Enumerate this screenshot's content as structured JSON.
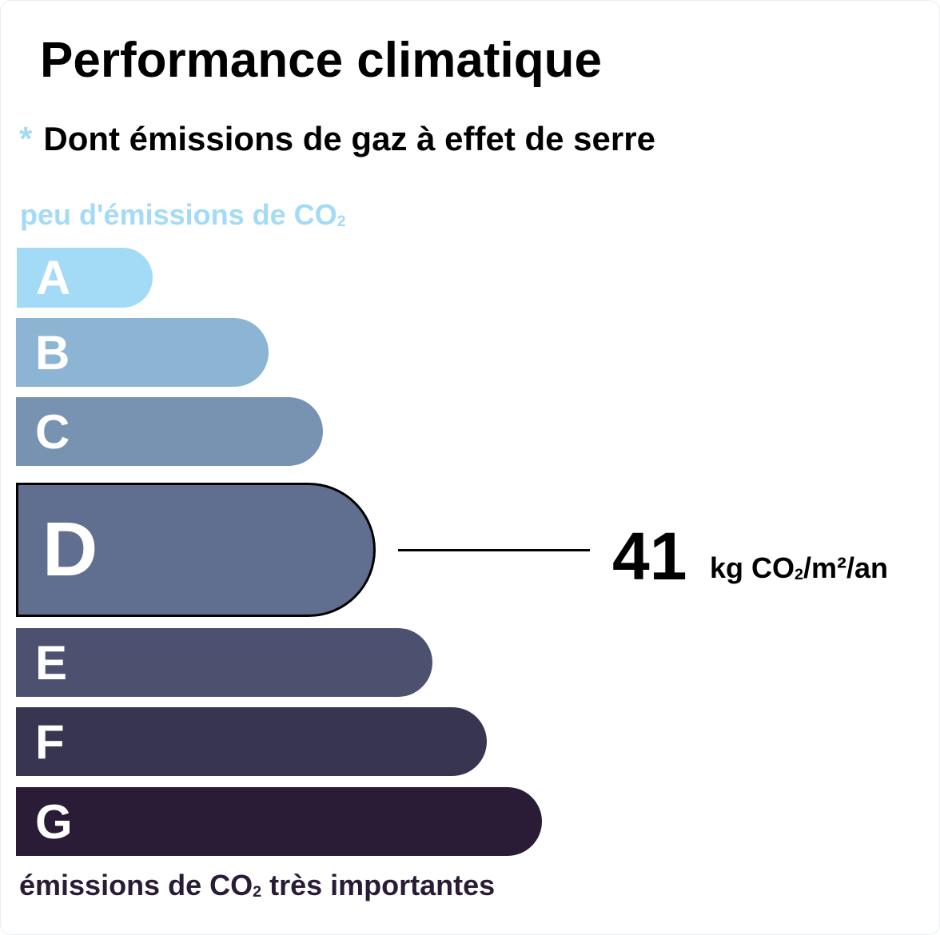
{
  "title": "Performance climatique",
  "subtitle": {
    "marker": "*",
    "text": "Dont émissions de gaz à effet de serre"
  },
  "top_label": {
    "text": "peu d'émissions de CO",
    "sub": "2",
    "color": "#a3dbf6"
  },
  "bottom_label": {
    "text_before": "émissions de CO",
    "sub": "2",
    "text_after": " très importantes",
    "color": "#2a1b36"
  },
  "classes": [
    {
      "letter": "A",
      "color": "#a3dbf6"
    },
    {
      "letter": "B",
      "color": "#8cb4d3"
    },
    {
      "letter": "C",
      "color": "#7793b1"
    },
    {
      "letter": "D",
      "color": "#606f8f"
    },
    {
      "letter": "E",
      "color": "#4d5170"
    },
    {
      "letter": "F",
      "color": "#383551"
    },
    {
      "letter": "G",
      "color": "#2a1b36"
    }
  ],
  "current_class": "D",
  "value": "41",
  "unit": {
    "pre": "kg CO",
    "sub": "2",
    "post": "/m²/an"
  }
}
